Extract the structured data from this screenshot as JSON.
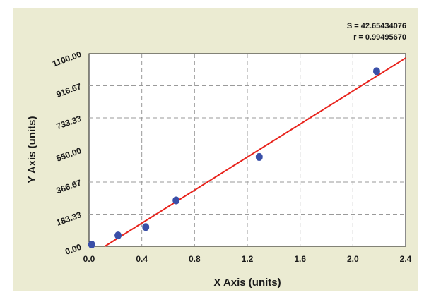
{
  "chart_data": {
    "type": "scatter",
    "xlabel": "X Axis (units)",
    "ylabel": "Y Axis (units)",
    "xlim": [
      0,
      2.4
    ],
    "ylim": [
      0,
      1100
    ],
    "x_ticks": [
      "0.0",
      "0.4",
      "0.8",
      "1.2",
      "1.6",
      "2.0",
      "2.4"
    ],
    "y_ticks": [
      "0.00",
      "183.33",
      "366.67",
      "550.00",
      "733.33",
      "916.67",
      "1100.00"
    ],
    "grid": true,
    "series": [
      {
        "points": [
          {
            "x": 0.02,
            "y": 10
          },
          {
            "x": 0.22,
            "y": 62
          },
          {
            "x": 0.43,
            "y": 110
          },
          {
            "x": 0.66,
            "y": 262
          },
          {
            "x": 1.29,
            "y": 510
          },
          {
            "x": 2.18,
            "y": 1000
          }
        ],
        "color": "#3a4fa8"
      }
    ],
    "fit_line": {
      "color": "#e8231c",
      "points": [
        {
          "x": 0.12,
          "y": 0
        },
        {
          "x": 2.4,
          "y": 1075
        }
      ]
    },
    "annotations": {
      "s": "S = 42.65434076",
      "r": "r = 0.99495670"
    }
  }
}
